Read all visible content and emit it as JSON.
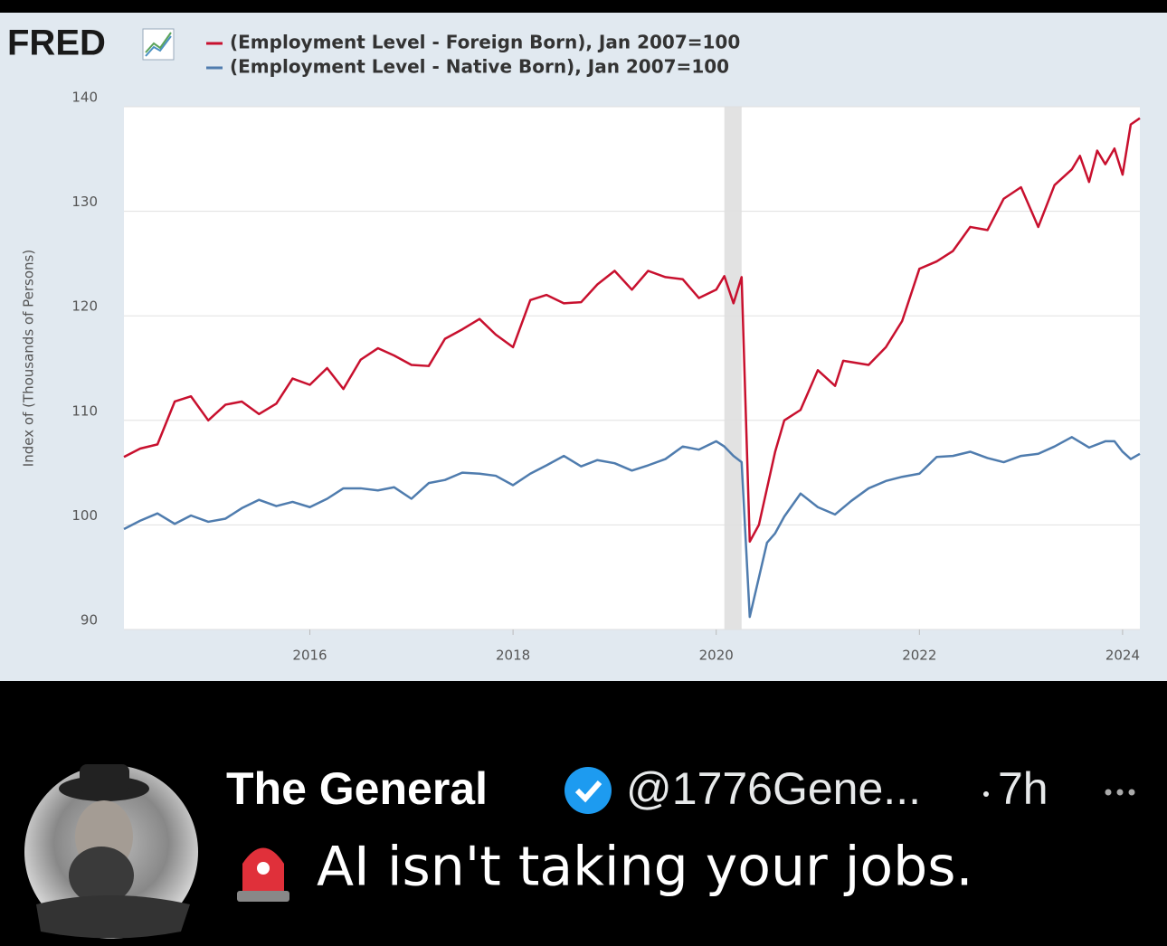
{
  "chart_data": {
    "type": "line",
    "logo": "FRED",
    "ylabel": "Index of (Thousands of Persons)",
    "xlim": [
      2014.17,
      2024.17
    ],
    "xticks": [
      2016,
      2018,
      2020,
      2022,
      2024
    ],
    "ylim": [
      90,
      140
    ],
    "yticks": [
      90,
      100,
      110,
      120,
      130,
      140
    ],
    "grid": true,
    "shaded_x": [
      2020.08,
      2020.25
    ],
    "series": [
      {
        "name": "(Employment Level - Foreign Born), Jan 2007=100",
        "color": "#c8102e",
        "x": [
          2014.17,
          2014.33,
          2014.5,
          2014.67,
          2014.83,
          2015.0,
          2015.17,
          2015.33,
          2015.5,
          2015.67,
          2015.83,
          2016.0,
          2016.17,
          2016.33,
          2016.5,
          2016.67,
          2016.83,
          2017.0,
          2017.17,
          2017.33,
          2017.5,
          2017.67,
          2017.83,
          2018.0,
          2018.17,
          2018.33,
          2018.5,
          2018.67,
          2018.83,
          2019.0,
          2019.17,
          2019.33,
          2019.5,
          2019.67,
          2019.83,
          2020.0,
          2020.08,
          2020.17,
          2020.25,
          2020.33,
          2020.42,
          2020.58,
          2020.67,
          2020.83,
          2021.0,
          2021.17,
          2021.25,
          2021.5,
          2021.67,
          2021.83,
          2022.0,
          2022.17,
          2022.33,
          2022.5,
          2022.67,
          2022.83,
          2023.0,
          2023.17,
          2023.33,
          2023.5,
          2023.58,
          2023.67,
          2023.75,
          2023.83,
          2023.92,
          2024.0,
          2024.08,
          2024.17
        ],
        "values": [
          106.5,
          107.3,
          107.7,
          111.8,
          112.3,
          110.0,
          111.5,
          111.8,
          110.6,
          111.6,
          114.0,
          113.4,
          115.0,
          113.0,
          115.8,
          116.9,
          116.2,
          115.3,
          115.2,
          117.8,
          118.7,
          119.7,
          118.2,
          117.0,
          121.5,
          122.0,
          121.2,
          121.3,
          123.0,
          124.3,
          122.5,
          124.3,
          123.7,
          123.5,
          121.7,
          122.5,
          123.8,
          121.2,
          123.7,
          98.4,
          100.0,
          107.0,
          110.0,
          111.0,
          114.8,
          113.3,
          115.7,
          115.3,
          117.0,
          119.5,
          124.5,
          125.2,
          126.2,
          128.5,
          128.2,
          131.2,
          132.3,
          128.5,
          132.5,
          134.0,
          135.3,
          132.8,
          135.8,
          134.5,
          136.0,
          133.5,
          138.3,
          138.9
        ]
      },
      {
        "name": "(Employment Level - Native Born), Jan 2007=100",
        "color": "#4f7cae",
        "x": [
          2014.17,
          2014.33,
          2014.5,
          2014.67,
          2014.83,
          2015.0,
          2015.17,
          2015.33,
          2015.5,
          2015.67,
          2015.83,
          2016.0,
          2016.17,
          2016.33,
          2016.5,
          2016.67,
          2016.83,
          2017.0,
          2017.17,
          2017.33,
          2017.5,
          2017.67,
          2017.83,
          2018.0,
          2018.17,
          2018.33,
          2018.5,
          2018.67,
          2018.83,
          2019.0,
          2019.17,
          2019.33,
          2019.5,
          2019.67,
          2019.83,
          2020.0,
          2020.08,
          2020.17,
          2020.25,
          2020.33,
          2020.5,
          2020.58,
          2020.67,
          2020.83,
          2021.0,
          2021.17,
          2021.33,
          2021.5,
          2021.67,
          2021.83,
          2022.0,
          2022.17,
          2022.33,
          2022.5,
          2022.67,
          2022.83,
          2023.0,
          2023.17,
          2023.33,
          2023.5,
          2023.67,
          2023.83,
          2023.92,
          2024.0,
          2024.08,
          2024.17
        ],
        "values": [
          99.6,
          100.4,
          101.1,
          100.1,
          100.9,
          100.3,
          100.6,
          101.6,
          102.4,
          101.8,
          102.2,
          101.7,
          102.5,
          103.5,
          103.5,
          103.3,
          103.6,
          102.5,
          104.0,
          104.3,
          105.0,
          104.9,
          104.7,
          103.8,
          104.9,
          105.7,
          106.6,
          105.6,
          106.2,
          105.9,
          105.2,
          105.7,
          106.3,
          107.5,
          107.2,
          108.0,
          107.5,
          106.6,
          106.0,
          91.2,
          98.3,
          99.2,
          100.8,
          103.0,
          101.7,
          101.0,
          102.3,
          103.5,
          104.2,
          104.6,
          104.9,
          106.5,
          106.6,
          107.0,
          106.4,
          106.0,
          106.6,
          106.8,
          107.5,
          108.4,
          107.4,
          108.0,
          108.0,
          107.0,
          106.3,
          106.8
        ]
      }
    ]
  },
  "tweet": {
    "name": "The General",
    "handle": "@1776Gene...",
    "time": "7h",
    "text": "AI isn't taking your jobs."
  }
}
